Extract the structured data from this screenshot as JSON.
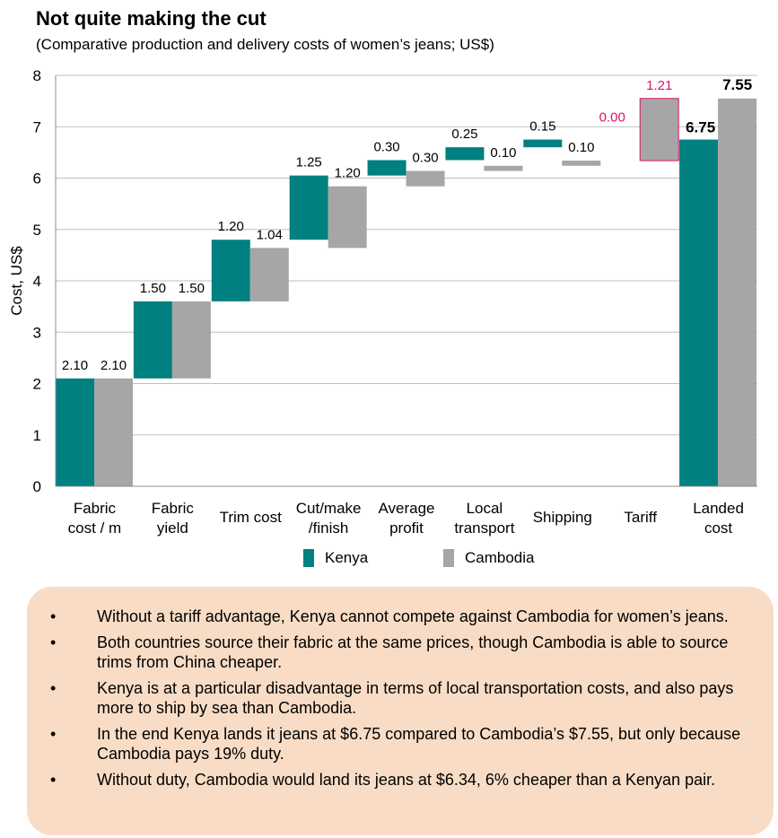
{
  "title": "Not quite making the cut",
  "subtitle": "(Comparative production and delivery costs of women’s jeans; US$)",
  "colors": {
    "kenya": "#008080",
    "cambodia": "#a6a6a6",
    "tariff_label": "#e0106a",
    "grid": "#bfbfbf",
    "notes_bg": "#f8dcc5"
  },
  "chart_data": {
    "type": "bar",
    "subtype": "waterfall",
    "ylabel": "Cost, US$",
    "ylim": [
      0,
      8
    ],
    "yticks": [
      "0",
      "1",
      "2",
      "3",
      "4",
      "5",
      "6",
      "7",
      "8"
    ],
    "categories": [
      [
        "Fabric",
        "cost / m"
      ],
      [
        "Fabric",
        "yield"
      ],
      [
        "Trim cost"
      ],
      [
        "Cut/make",
        "/finish"
      ],
      [
        "Average",
        "profit"
      ],
      [
        "Local",
        "transport"
      ],
      [
        "Shipping"
      ],
      [
        "Tariff"
      ],
      [
        "Landed",
        "cost"
      ]
    ],
    "series": [
      {
        "name": "Kenya",
        "values": [
          2.1,
          1.5,
          1.2,
          1.25,
          0.3,
          0.25,
          0.15,
          0.0,
          6.75
        ],
        "labels": [
          "2.10",
          "1.50",
          "1.20",
          "1.25",
          "0.30",
          "0.25",
          "0.15",
          "0.00",
          "6.75"
        ]
      },
      {
        "name": "Cambodia",
        "values": [
          2.1,
          1.5,
          1.04,
          1.2,
          0.3,
          0.1,
          0.1,
          1.21,
          7.55
        ],
        "labels": [
          "2.10",
          "1.50",
          "1.04",
          "1.20",
          "0.30",
          "0.10",
          "0.10",
          "1.21",
          "7.55"
        ]
      }
    ],
    "legend": "bottom"
  },
  "notes": [
    "Without a tariff advantage, Kenya cannot compete against Cambodia for women’s jeans.",
    "Both countries source their fabric at the same prices, though Cambodia is able to source trims from China cheaper.",
    "Kenya is at a particular disadvantage in terms of local transportation costs, and also pays more to ship by sea than Cambodia.",
    "In the end Kenya lands it jeans at $6.75 compared to Cambodia’s $7.55, but only because Cambodia pays 19% duty.",
    "Without duty, Cambodia would land its jeans at $6.34, 6% cheaper than a Kenyan pair."
  ]
}
